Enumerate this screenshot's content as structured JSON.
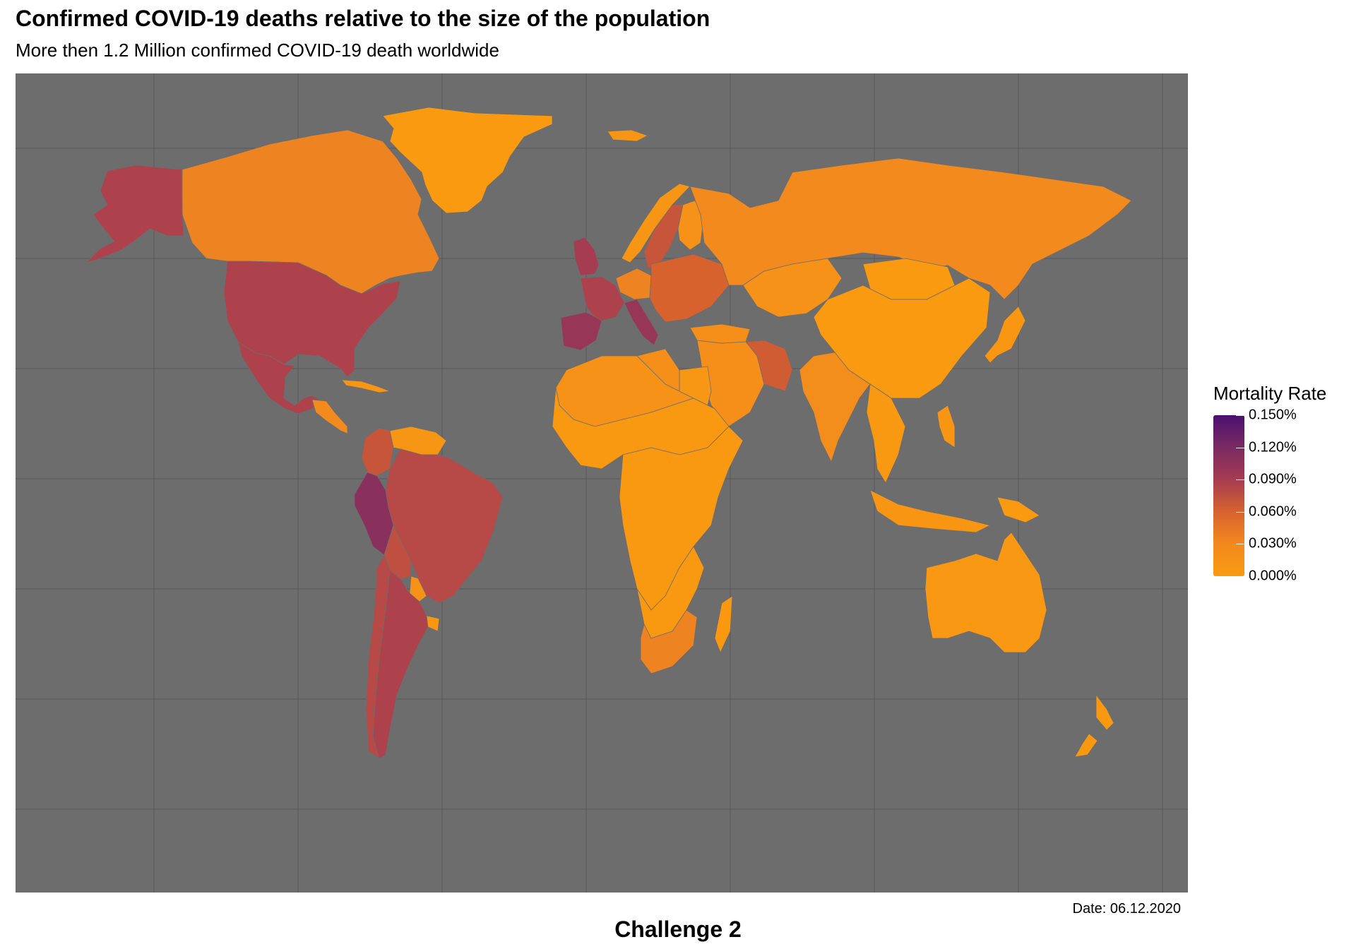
{
  "title": "Confirmed COVID-19 deaths relative to the size of the population",
  "subtitle": "More then 1.2 Million confirmed COVID-19 death worldwide",
  "legend": {
    "title": "Mortality Rate",
    "ticks": [
      "0.150%",
      "0.120%",
      "0.090%",
      "0.060%",
      "0.030%",
      "0.000%"
    ],
    "tick_values": [
      0.15,
      0.12,
      0.09,
      0.06,
      0.03,
      0.0
    ],
    "colors": [
      "#4a1070",
      "#7a2a62",
      "#a63c52",
      "#d8622e",
      "#f28a1e",
      "#fa9a10"
    ]
  },
  "date": "Date: 06.12.2020",
  "caption": "Challenge 2",
  "chart_data": {
    "type": "choropleth",
    "background": "#6d6d6d",
    "grid": true,
    "legend_position": "right",
    "fill_scale": {
      "min": 0.0,
      "max": 0.15,
      "unit": "%"
    },
    "regions": [
      {
        "name": "Canada",
        "value": 0.035
      },
      {
        "name": "USA",
        "value": 0.085
      },
      {
        "name": "Alaska",
        "value": 0.085
      },
      {
        "name": "Mexico",
        "value": 0.085
      },
      {
        "name": "Central America",
        "value": 0.03
      },
      {
        "name": "Cuba",
        "value": 0.01
      },
      {
        "name": "Colombia",
        "value": 0.07
      },
      {
        "name": "Venezuela",
        "value": 0.01
      },
      {
        "name": "Peru",
        "value": 0.11
      },
      {
        "name": "Brazil",
        "value": 0.08
      },
      {
        "name": "Bolivia",
        "value": 0.075
      },
      {
        "name": "Argentina",
        "value": 0.085
      },
      {
        "name": "Chile",
        "value": 0.08
      },
      {
        "name": "Paraguay",
        "value": 0.015
      },
      {
        "name": "Uruguay",
        "value": 0.005
      },
      {
        "name": "Greenland",
        "value": 0.0
      },
      {
        "name": "Iceland",
        "value": 0.01
      },
      {
        "name": "UK",
        "value": 0.09
      },
      {
        "name": "France",
        "value": 0.085
      },
      {
        "name": "Spain",
        "value": 0.1
      },
      {
        "name": "Italy",
        "value": 0.1
      },
      {
        "name": "Sweden",
        "value": 0.07
      },
      {
        "name": "Norway",
        "value": 0.01
      },
      {
        "name": "Finland",
        "value": 0.015
      },
      {
        "name": "Germany",
        "value": 0.035
      },
      {
        "name": "Eastern Europe",
        "value": 0.06
      },
      {
        "name": "Russia",
        "value": 0.03
      },
      {
        "name": "Kazakhstan",
        "value": 0.015
      },
      {
        "name": "Iran",
        "value": 0.065
      },
      {
        "name": "Middle East",
        "value": 0.02
      },
      {
        "name": "Turkey",
        "value": 0.02
      },
      {
        "name": "India",
        "value": 0.025
      },
      {
        "name": "China",
        "value": 0.0
      },
      {
        "name": "Mongolia",
        "value": 0.0
      },
      {
        "name": "Southeast Asia",
        "value": 0.002
      },
      {
        "name": "Japan",
        "value": 0.005
      },
      {
        "name": "Indonesia",
        "value": 0.007
      },
      {
        "name": "Philippines",
        "value": 0.007
      },
      {
        "name": "Papua New Guinea",
        "value": 0.0
      },
      {
        "name": "Australia",
        "value": 0.004
      },
      {
        "name": "New Zealand",
        "value": 0.001
      },
      {
        "name": "North Africa",
        "value": 0.015
      },
      {
        "name": "Egypt",
        "value": 0.006
      },
      {
        "name": "Libya",
        "value": 0.02
      },
      {
        "name": "Sahel & West Africa",
        "value": 0.002
      },
      {
        "name": "Central & East Africa",
        "value": 0.002
      },
      {
        "name": "Southern Africa",
        "value": 0.003
      },
      {
        "name": "South Africa",
        "value": 0.035
      },
      {
        "name": "Madagascar",
        "value": 0.001
      }
    ]
  }
}
